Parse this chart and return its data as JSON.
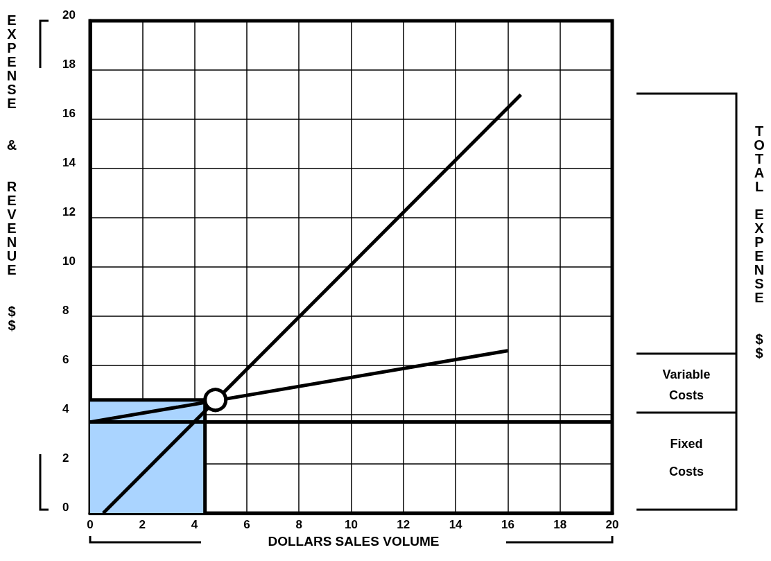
{
  "chart_data": {
    "type": "line",
    "xlabel": "DOLLARS SALES VOLUME",
    "ylabel": "EXPENSE & REVENUE $$",
    "annotations": [
      "TOTAL EXPENSE $$",
      "Variable Costs",
      "Fixed Costs"
    ],
    "series": [
      {
        "type": "area",
        "color": "#aad4ff",
        "x": [
          0,
          4.4,
          4.4
        ],
        "values": [
          4.6,
          4.6,
          0
        ]
      },
      {
        "color": "#000000",
        "x": [
          0.5,
          16.5
        ],
        "values": [
          0,
          17
        ]
      },
      {
        "color": "#000000",
        "x": [
          0,
          16
        ],
        "values": [
          3.7,
          6.6
        ]
      },
      {
        "type": "scatter",
        "marker": "circle",
        "color": "#000000",
        "x": [
          4.8
        ],
        "values": [
          4.6
        ]
      }
    ],
    "ref_lines": [
      {
        "axis": "y",
        "value": 3.7,
        "color": "#000000"
      }
    ],
    "xlim": [
      0,
      20
    ],
    "xticks": [
      0,
      2,
      4,
      6,
      8,
      10,
      12,
      14,
      16,
      18,
      20
    ],
    "ylim": [
      0,
      20
    ],
    "yticks": [
      0,
      2,
      4,
      6,
      8,
      10,
      12,
      14,
      16,
      18,
      20
    ],
    "grid": true
  }
}
